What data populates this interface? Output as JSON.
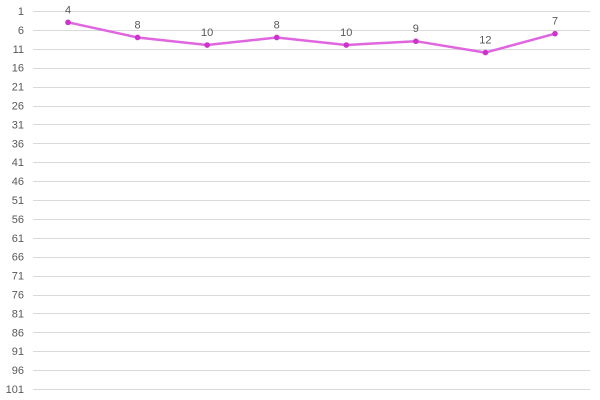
{
  "chart_data": {
    "type": "line",
    "title": "",
    "xlabel": "",
    "ylabel": "",
    "y_axis_reversed": true,
    "ylim": [
      1,
      101
    ],
    "y_ticks": [
      1,
      6,
      11,
      16,
      21,
      26,
      31,
      36,
      41,
      46,
      51,
      56,
      61,
      66,
      71,
      76,
      81,
      86,
      91,
      96,
      101
    ],
    "grid": true,
    "legend": "none",
    "series": [
      {
        "color": "#e066e0",
        "values": [
          4,
          8,
          10,
          8,
          10,
          9,
          12,
          7
        ]
      }
    ]
  }
}
